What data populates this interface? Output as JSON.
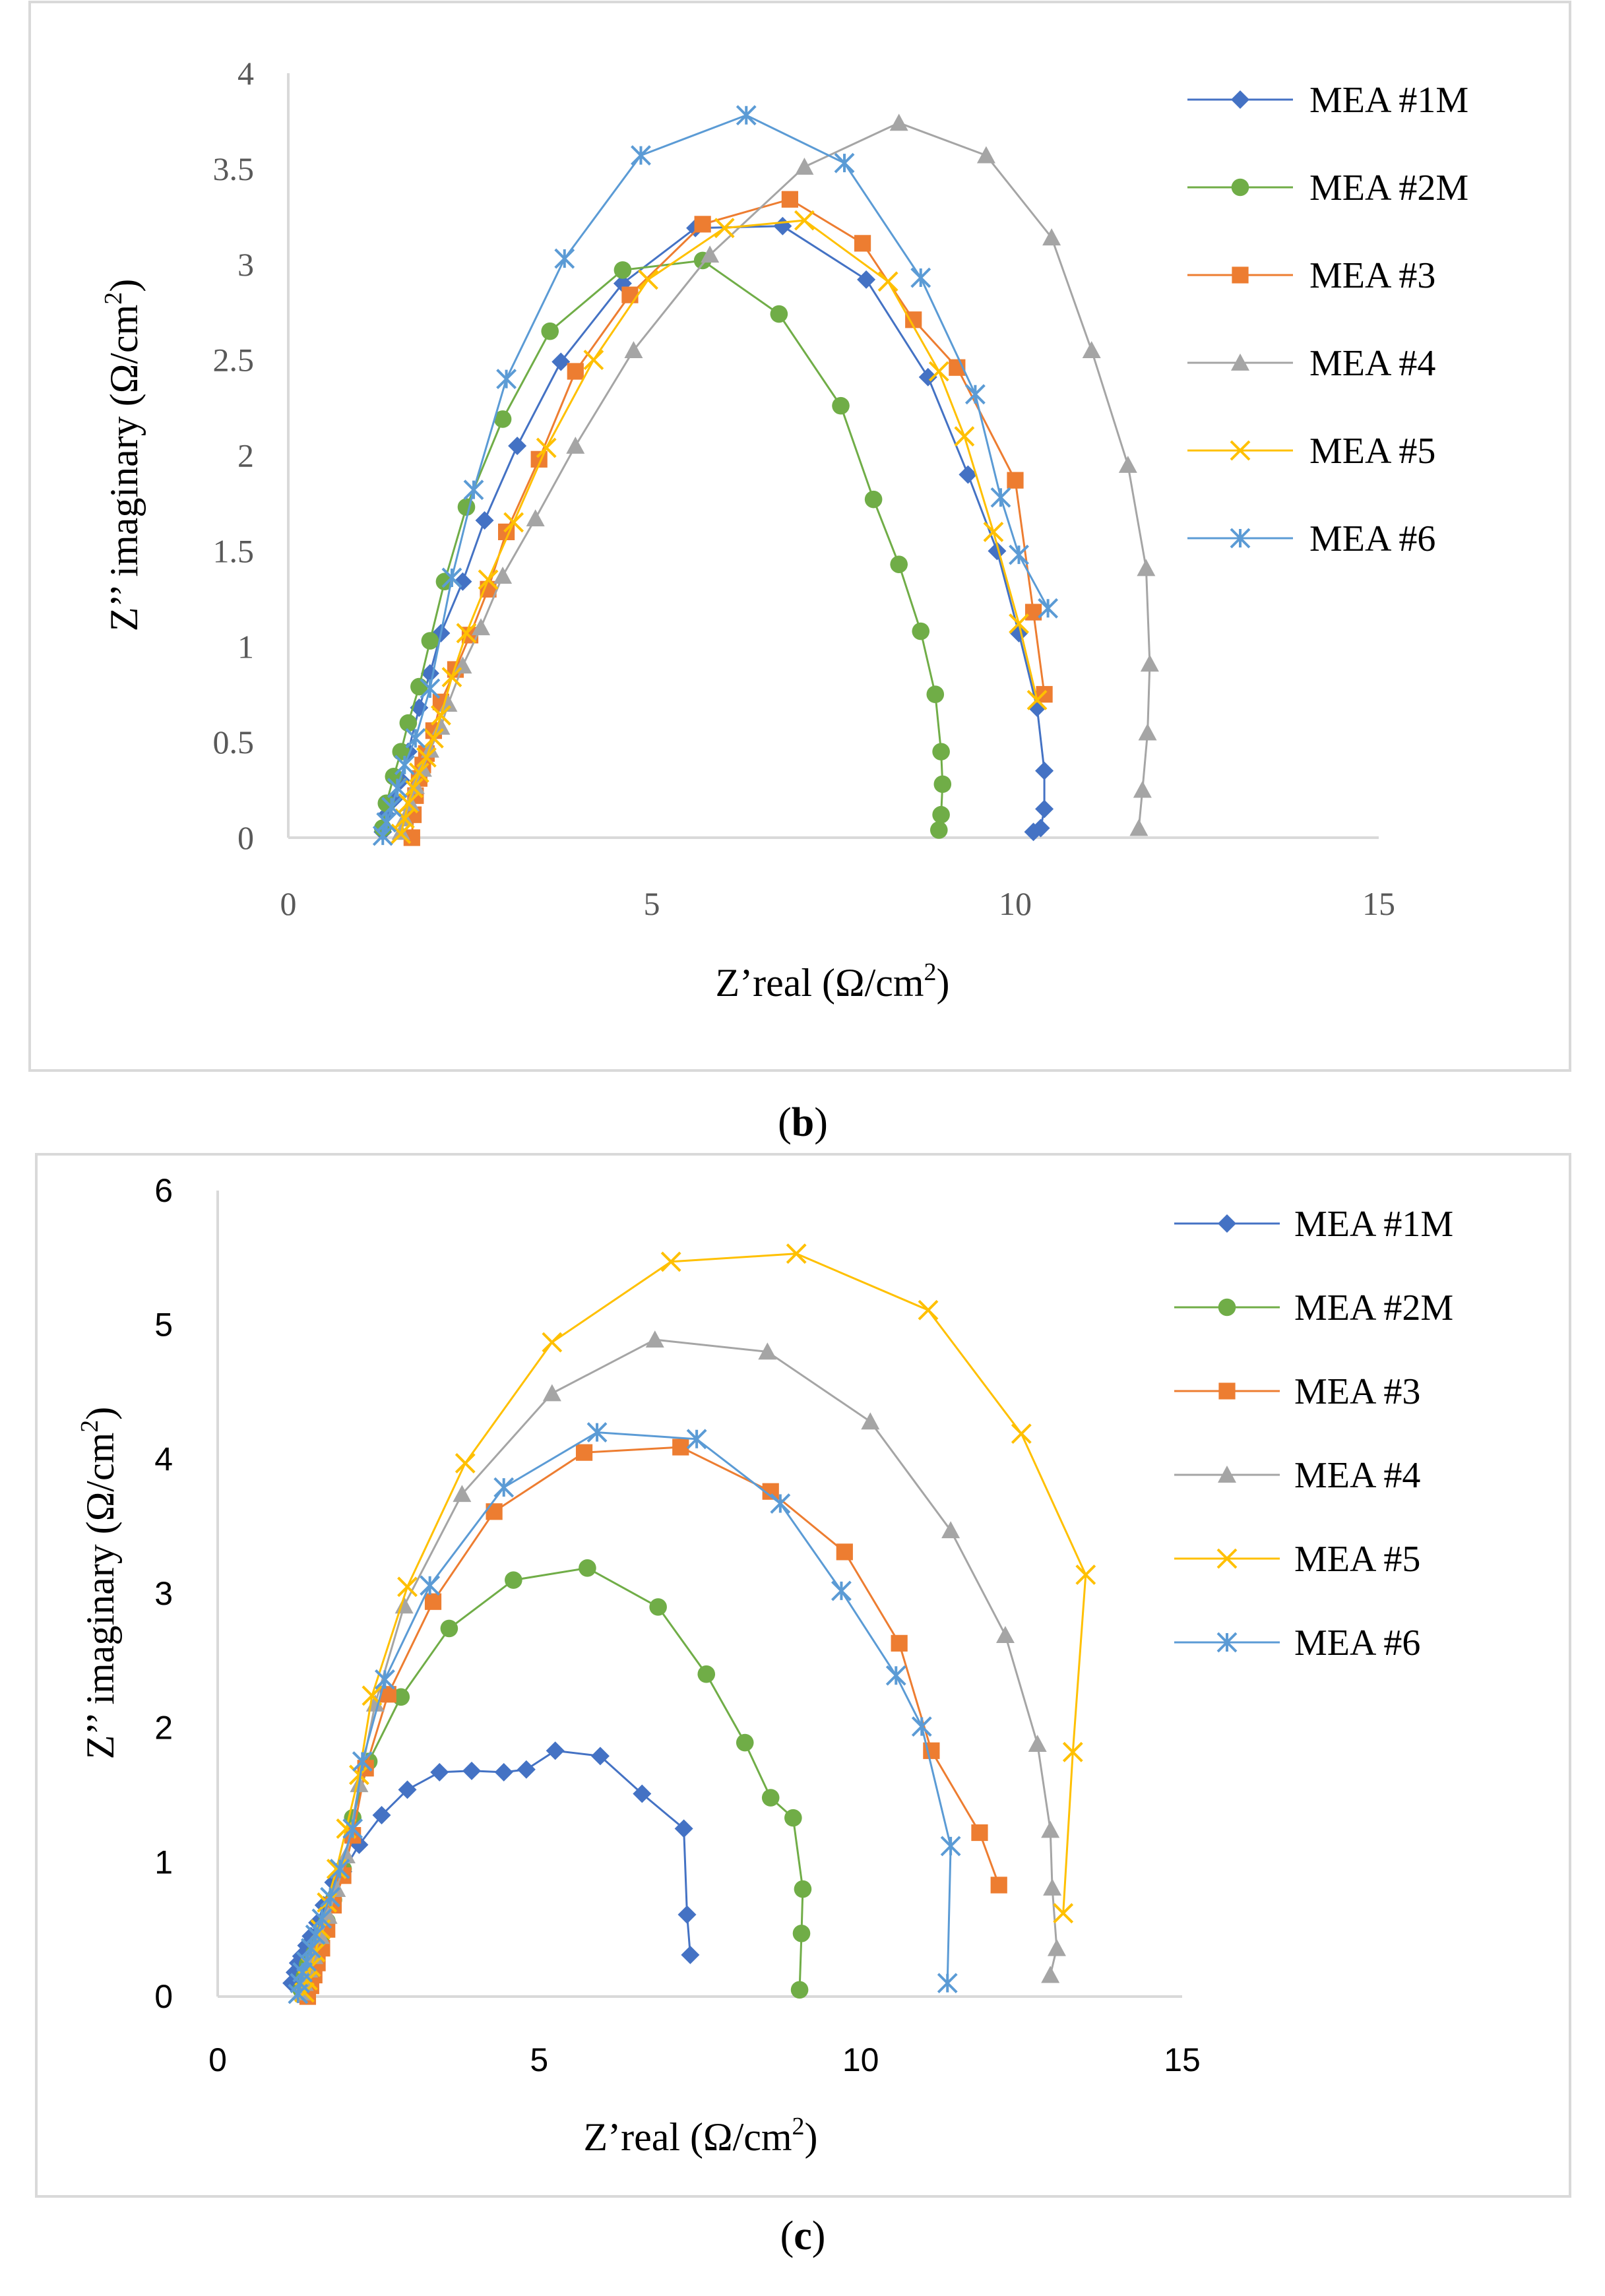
{
  "captions": {
    "b": "b",
    "c": "c"
  },
  "charts": {
    "b": {
      "xlabel": {
        "main": "Z’real (Ω/cm",
        "sup": "2",
        "close": ")"
      },
      "ylabel": {
        "main": "Z’’ imaginary (Ω/cm",
        "sup": "2",
        "close": ")"
      },
      "xticks": [
        "0",
        "5",
        "10",
        "15"
      ],
      "yticks": [
        "0",
        "0.5",
        "1",
        "1.5",
        "2",
        "2.5",
        "3",
        "3.5",
        "4"
      ]
    },
    "c": {
      "xlabel": {
        "main": "Z’real (Ω/cm",
        "sup": "2",
        "close": ")"
      },
      "ylabel": {
        "main": "Z’’ imaginary (Ω/cm",
        "sup": "2",
        "close": ")"
      },
      "xticks": [
        "0",
        "5",
        "10",
        "15"
      ],
      "yticks": [
        "0",
        "1",
        "2",
        "3",
        "4",
        "5",
        "6"
      ]
    }
  },
  "chart_data": [
    {
      "type": "line",
      "panel": "b",
      "title": "",
      "xlabel": "Z’real (Ω/cm2)",
      "ylabel": "Z’’ imaginary (Ω/cm2)",
      "xlim": [
        0,
        15
      ],
      "ylim": [
        0,
        4
      ],
      "legend": "top-right",
      "series": [
        {
          "name": "MEA #1M",
          "color": "#4472C4",
          "marker": "diamond",
          "x": [
            1.3,
            1.35,
            1.45,
            1.55,
            1.65,
            1.8,
            1.95,
            2.1,
            2.4,
            2.7,
            3.15,
            3.75,
            4.6,
            5.6,
            6.8,
            7.95,
            8.8,
            9.35,
            9.75,
            10.05,
            10.3,
            10.4,
            10.4,
            10.35,
            10.25
          ],
          "y": [
            0.03,
            0.12,
            0.2,
            0.3,
            0.45,
            0.68,
            0.86,
            1.07,
            1.34,
            1.66,
            2.05,
            2.49,
            2.9,
            3.19,
            3.2,
            2.92,
            2.41,
            1.9,
            1.5,
            1.07,
            0.68,
            0.35,
            0.15,
            0.05,
            0.03
          ]
        },
        {
          "name": "MEA #2M",
          "color": "#70AD47",
          "marker": "circle",
          "x": [
            1.3,
            1.35,
            1.45,
            1.55,
            1.65,
            1.8,
            1.95,
            2.15,
            2.45,
            2.95,
            3.6,
            4.6,
            5.7,
            6.75,
            7.6,
            8.05,
            8.4,
            8.7,
            8.9,
            8.98,
            9.0,
            8.98,
            8.95
          ],
          "y": [
            0.05,
            0.18,
            0.32,
            0.45,
            0.6,
            0.79,
            1.03,
            1.34,
            1.73,
            2.19,
            2.65,
            2.97,
            3.02,
            2.74,
            2.26,
            1.77,
            1.43,
            1.08,
            0.75,
            0.45,
            0.28,
            0.12,
            0.04
          ]
        },
        {
          "name": "MEA #3",
          "color": "#ED7D31",
          "marker": "square",
          "x": [
            1.7,
            1.72,
            1.75,
            1.8,
            1.85,
            1.9,
            2.0,
            2.1,
            2.3,
            2.5,
            2.75,
            3.0,
            3.45,
            3.95,
            4.7,
            5.7,
            6.9,
            7.9,
            8.6,
            9.2,
            10.0,
            10.25,
            10.4
          ],
          "y": [
            0.0,
            0.12,
            0.22,
            0.31,
            0.38,
            0.44,
            0.56,
            0.71,
            0.88,
            1.06,
            1.3,
            1.6,
            1.98,
            2.44,
            2.84,
            3.21,
            3.34,
            3.11,
            2.71,
            2.46,
            1.87,
            1.18,
            0.75
          ]
        },
        {
          "name": "MEA #4",
          "color": "#A5A5A5",
          "marker": "triangle",
          "x": [
            1.55,
            1.6,
            1.68,
            1.75,
            1.85,
            1.95,
            2.1,
            2.2,
            2.4,
            2.65,
            2.95,
            3.4,
            3.95,
            4.75,
            5.8,
            7.1,
            8.4,
            9.6,
            10.5,
            11.05,
            11.55,
            11.8,
            11.85,
            11.82,
            11.75,
            11.7
          ],
          "y": [
            0.03,
            0.1,
            0.18,
            0.27,
            0.36,
            0.46,
            0.58,
            0.7,
            0.9,
            1.1,
            1.37,
            1.67,
            2.05,
            2.55,
            3.05,
            3.51,
            3.74,
            3.57,
            3.14,
            2.55,
            1.95,
            1.41,
            0.91,
            0.55,
            0.25,
            0.05
          ]
        },
        {
          "name": "MEA #5",
          "color": "#FFC000",
          "marker": "x",
          "x": [
            1.55,
            1.6,
            1.65,
            1.72,
            1.8,
            1.9,
            2.0,
            2.1,
            2.25,
            2.45,
            2.75,
            3.1,
            3.55,
            4.2,
            4.95,
            6.0,
            7.1,
            8.25,
            8.95,
            9.3,
            9.7,
            10.05,
            10.3
          ],
          "y": [
            0.02,
            0.1,
            0.18,
            0.26,
            0.34,
            0.42,
            0.52,
            0.64,
            0.84,
            1.07,
            1.35,
            1.65,
            2.04,
            2.5,
            2.92,
            3.19,
            3.23,
            2.91,
            2.44,
            2.1,
            1.6,
            1.12,
            0.72
          ]
        },
        {
          "name": "MEA #6",
          "color": "#5B9BD5",
          "marker": "star",
          "x": [
            1.3,
            1.35,
            1.42,
            1.5,
            1.6,
            1.75,
            1.95,
            2.25,
            2.55,
            3.0,
            3.8,
            4.85,
            6.3,
            7.65,
            8.7,
            9.45,
            9.8,
            10.05,
            10.45
          ],
          "y": [
            0.01,
            0.08,
            0.16,
            0.26,
            0.38,
            0.52,
            0.78,
            1.36,
            1.82,
            2.4,
            3.03,
            3.57,
            3.78,
            3.53,
            2.93,
            2.32,
            1.78,
            1.48,
            1.2
          ]
        }
      ]
    },
    {
      "type": "line",
      "panel": "c",
      "title": "",
      "xlabel": "Z’real (Ω/cm2)",
      "ylabel": "Z’’ imaginary (Ω/cm2)",
      "xlim": [
        0,
        15
      ],
      "ylim": [
        0,
        6
      ],
      "legend": "top-right",
      "series": [
        {
          "name": "MEA #1M",
          "color": "#4472C4",
          "marker": "diamond",
          "x": [
            1.15,
            1.2,
            1.25,
            1.3,
            1.38,
            1.45,
            1.55,
            1.65,
            1.8,
            1.95,
            2.2,
            2.55,
            2.95,
            3.45,
            3.95,
            4.45,
            4.8,
            5.25,
            5.95,
            6.6,
            7.25,
            7.3,
            7.35
          ],
          "y": [
            0.1,
            0.18,
            0.25,
            0.3,
            0.38,
            0.45,
            0.55,
            0.68,
            0.85,
            0.93,
            1.13,
            1.35,
            1.54,
            1.67,
            1.68,
            1.67,
            1.69,
            1.83,
            1.79,
            1.51,
            1.25,
            0.61,
            0.31
          ]
        },
        {
          "name": "MEA #2M",
          "color": "#70AD47",
          "marker": "circle",
          "x": [
            1.3,
            1.35,
            1.4,
            1.5,
            1.6,
            1.7,
            1.8,
            1.95,
            2.1,
            2.35,
            2.85,
            3.6,
            4.6,
            5.75,
            6.85,
            7.6,
            8.2,
            8.6,
            8.95,
            9.1,
            9.08,
            9.05
          ],
          "y": [
            0.05,
            0.15,
            0.24,
            0.32,
            0.42,
            0.56,
            0.72,
            0.95,
            1.33,
            1.75,
            2.23,
            2.74,
            3.1,
            3.19,
            2.9,
            2.4,
            1.89,
            1.48,
            1.33,
            0.8,
            0.47,
            0.05
          ]
        },
        {
          "name": "MEA #3",
          "color": "#ED7D31",
          "marker": "square",
          "x": [
            1.4,
            1.45,
            1.5,
            1.55,
            1.62,
            1.7,
            1.8,
            1.95,
            2.1,
            2.3,
            2.65,
            3.35,
            4.3,
            5.7,
            7.2,
            8.6,
            9.75,
            10.6,
            11.1,
            11.85,
            12.15
          ],
          "y": [
            0.0,
            0.08,
            0.16,
            0.25,
            0.36,
            0.5,
            0.68,
            0.9,
            1.2,
            1.7,
            2.25,
            2.94,
            3.61,
            4.05,
            4.09,
            3.76,
            3.31,
            2.63,
            1.83,
            1.22,
            0.83
          ]
        },
        {
          "name": "MEA #4",
          "color": "#A5A5A5",
          "marker": "triangle",
          "x": [
            1.3,
            1.35,
            1.42,
            1.5,
            1.6,
            1.72,
            1.85,
            2.0,
            2.2,
            2.45,
            2.9,
            3.8,
            5.2,
            6.8,
            8.55,
            10.15,
            11.4,
            12.25,
            12.75,
            12.95,
            12.98,
            13.05,
            12.95
          ],
          "y": [
            0.03,
            0.1,
            0.2,
            0.3,
            0.45,
            0.6,
            0.8,
            1.05,
            1.58,
            2.18,
            2.91,
            3.74,
            4.49,
            4.89,
            4.8,
            4.28,
            3.47,
            2.69,
            1.88,
            1.24,
            0.81,
            0.36,
            0.16
          ]
        },
        {
          "name": "MEA #5",
          "color": "#FFC000",
          "marker": "x",
          "x": [
            1.35,
            1.4,
            1.45,
            1.52,
            1.6,
            1.7,
            1.85,
            2.0,
            2.2,
            2.4,
            2.95,
            3.85,
            5.2,
            7.05,
            9.0,
            11.05,
            12.5,
            13.5,
            13.3,
            13.15
          ],
          "y": [
            0.03,
            0.12,
            0.22,
            0.33,
            0.5,
            0.7,
            0.95,
            1.25,
            1.65,
            2.24,
            3.05,
            3.97,
            4.87,
            5.47,
            5.53,
            5.11,
            4.19,
            3.14,
            1.82,
            0.62
          ]
        },
        {
          "name": "MEA #6",
          "color": "#5B9BD5",
          "marker": "star",
          "x": [
            1.25,
            1.28,
            1.32,
            1.38,
            1.45,
            1.52,
            1.62,
            1.75,
            1.9,
            2.1,
            2.25,
            2.6,
            3.3,
            4.45,
            5.9,
            7.45,
            8.75,
            9.7,
            10.55,
            10.95,
            11.4,
            11.35
          ],
          "y": [
            0.02,
            0.1,
            0.18,
            0.26,
            0.36,
            0.46,
            0.58,
            0.74,
            0.95,
            1.25,
            1.75,
            2.36,
            3.06,
            3.79,
            4.2,
            4.15,
            3.67,
            3.02,
            2.39,
            2.01,
            1.12,
            0.1
          ]
        }
      ]
    }
  ]
}
